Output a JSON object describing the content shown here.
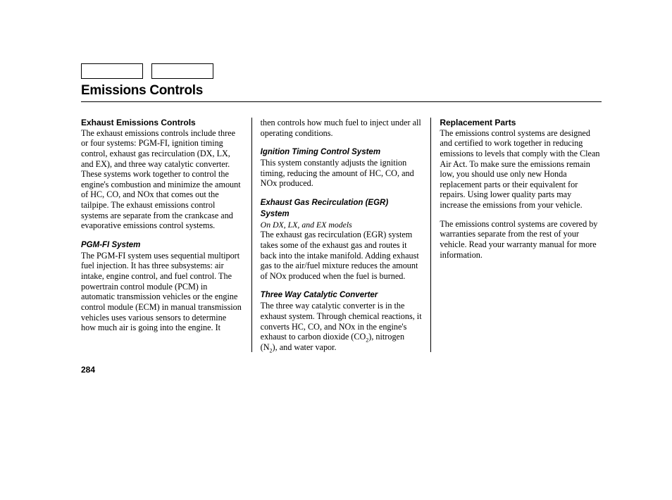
{
  "title": "Emissions Controls",
  "page_number": "284",
  "col1": {
    "h1": "Exhaust Emissions Controls",
    "p1": "The exhaust emissions controls include three or four systems: PGM-FI, ignition timing control, exhaust gas recirculation (DX, LX, and EX), and three way catalytic converter. These systems work together to control the engine's combustion and minimize the amount of HC, CO, and NOx that comes out the tailpipe. The exhaust emissions control systems are separate from the crankcase and evaporative emissions control systems.",
    "h2": "PGM-FI System",
    "p2": "The PGM-FI system uses sequential multiport fuel injection. It has three subsystems: air intake, engine control, and fuel control. The powertrain control module (PCM) in automatic transmission vehicles or the engine control module (ECM) in manual transmission vehicles uses various sensors to determine how much air is going into the engine. It"
  },
  "col2": {
    "p1": "then controls how much fuel to inject under all operating conditions.",
    "h1": "Ignition Timing Control System",
    "p2": "This system constantly adjusts the ignition timing, reducing the amount of HC, CO, and NOx produced.",
    "h2a": "Exhaust Gas Recirculation (EGR)",
    "h2b": "System",
    "note": "On DX, LX, and EX models",
    "p3": "The exhaust gas recirculation (EGR) system takes some of the exhaust gas and routes it back into the intake manifold. Adding exhaust gas to the air/fuel mixture reduces the amount of NOx produced when the fuel is burned.",
    "h3": "Three Way Catalytic Converter",
    "p4a": "The three way catalytic converter is in the exhaust system. Through chemical reactions, it converts HC, CO, and NOx in the engine's exhaust to carbon dioxide (CO",
    "p4b": "), nitrogen (N",
    "p4c": "), and water vapor."
  },
  "col3": {
    "h1": "Replacement Parts",
    "p1": "The emissions control systems are designed and certified to work together in reducing emissions to levels that comply with the Clean Air Act. To make sure the emissions remain low, you should use only new Honda replacement parts or their equivalent for repairs. Using lower quality parts may increase the emissions from your vehicle.",
    "p2": "The emissions control systems are covered by warranties separate from the rest of your vehicle. Read your warranty manual for more information."
  }
}
